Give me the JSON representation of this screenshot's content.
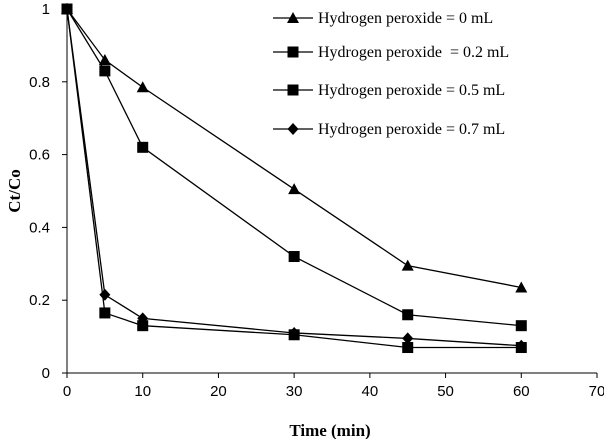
{
  "chart_data": {
    "type": "line",
    "title": "",
    "xlabel": "Time (min)",
    "ylabel": "Ct/Co",
    "xlim": [
      0,
      70
    ],
    "ylim": [
      0,
      1
    ],
    "x_ticks": [
      "0",
      "10",
      "20",
      "30",
      "40",
      "50",
      "60",
      "70"
    ],
    "y_ticks": [
      "0",
      "0.2",
      "0.4",
      "0.6",
      "0.8",
      "1"
    ],
    "grid": false,
    "legend_position": "top-right",
    "series": [
      {
        "name": "Hydrogen peroxide = 0 mL",
        "marker": "triangle",
        "x": [
          0,
          5,
          10,
          30,
          45,
          60
        ],
        "y": [
          1.0,
          0.86,
          0.785,
          0.505,
          0.295,
          0.235
        ]
      },
      {
        "name": "Hydrogen peroxide  = 0.2 mL",
        "marker": "square",
        "x": [
          0,
          5,
          10,
          30,
          45,
          60
        ],
        "y": [
          1.0,
          0.83,
          0.62,
          0.32,
          0.16,
          0.13
        ]
      },
      {
        "name": "Hydrogen peroxide = 0.5 mL",
        "marker": "square",
        "x": [
          0,
          5,
          10,
          30,
          45,
          60
        ],
        "y": [
          1.0,
          0.165,
          0.13,
          0.105,
          0.07,
          0.07
        ]
      },
      {
        "name": "Hydrogen peroxide = 0.7 mL",
        "marker": "diamond",
        "x": [
          0,
          5,
          10,
          30,
          45,
          60
        ],
        "y": [
          1.0,
          0.215,
          0.15,
          0.11,
          0.095,
          0.075
        ]
      }
    ]
  }
}
